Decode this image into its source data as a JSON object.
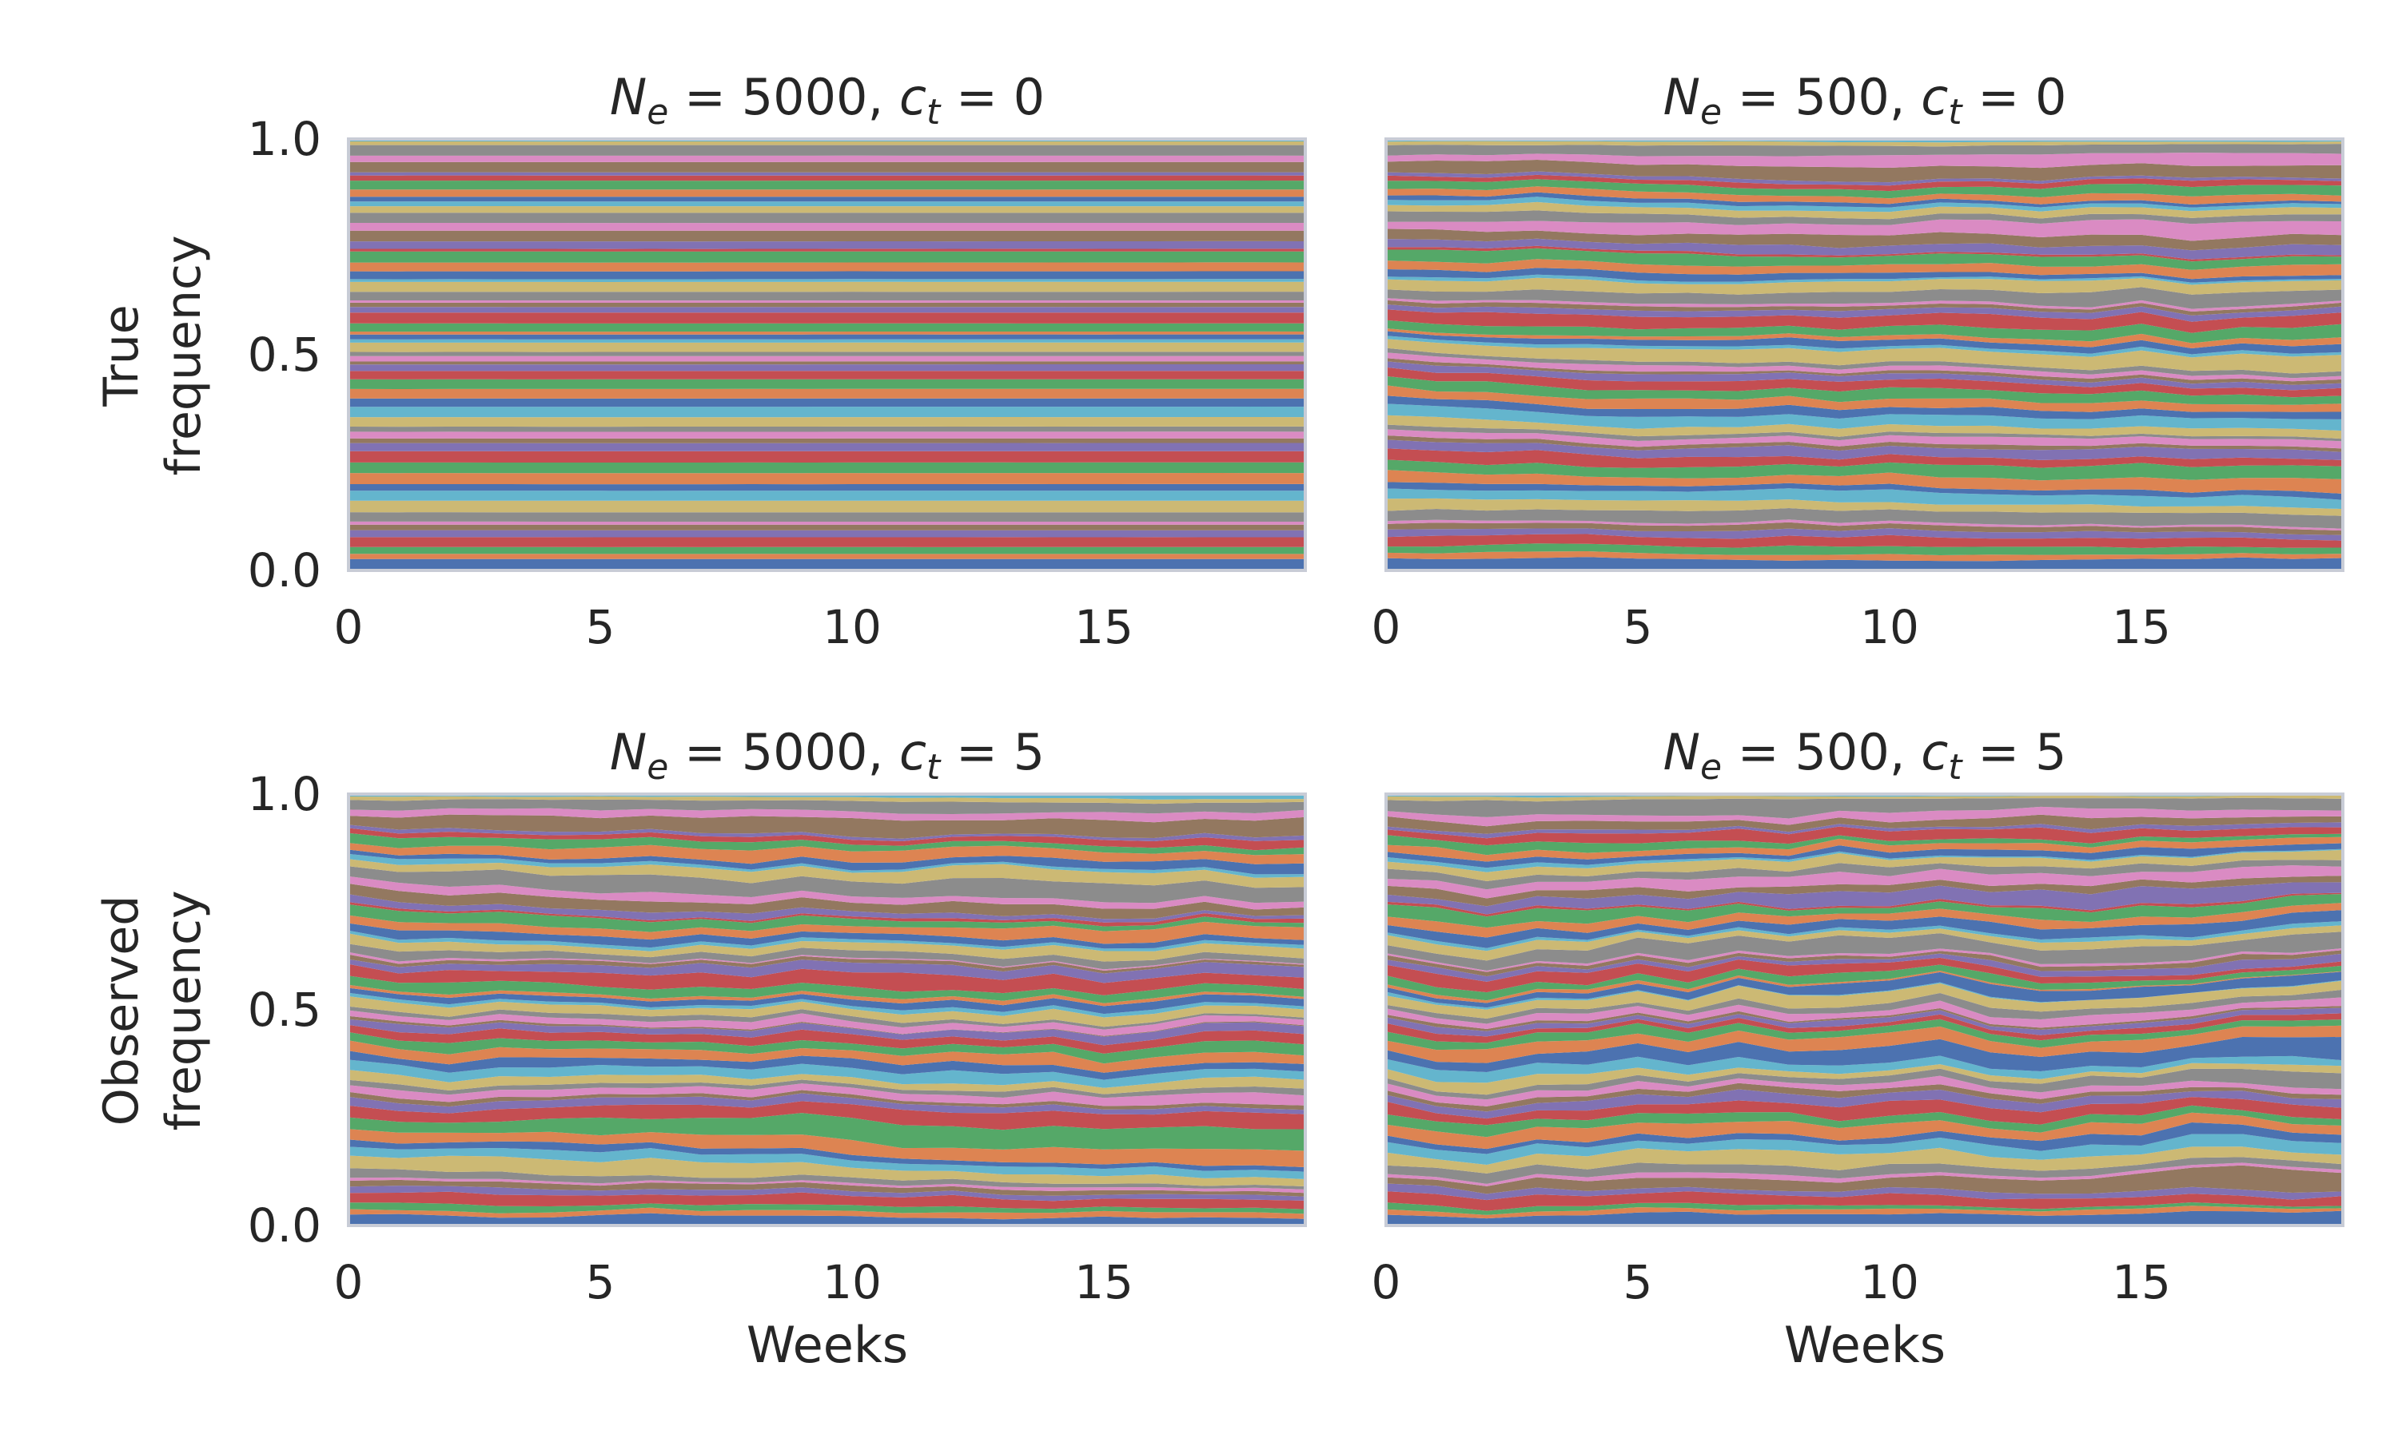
{
  "figure": {
    "row_labels": [
      {
        "line1": "True",
        "line2": "frequency"
      },
      {
        "line1": "Observed",
        "line2": "frequency"
      }
    ],
    "xlabel": "Weeks"
  },
  "chart_data": [
    {
      "type": "area",
      "stacked": true,
      "title": {
        "Ne": "5000",
        "ct": "0"
      },
      "xlabel": "",
      "ylabel": "True frequency",
      "x": [
        0,
        1,
        2,
        3,
        4,
        5,
        6,
        7,
        8,
        9,
        10,
        11,
        12,
        13,
        14,
        15,
        16,
        17,
        18,
        19
      ],
      "xlim": [
        0,
        19
      ],
      "ylim": [
        0,
        1
      ],
      "xticks": [
        0,
        5,
        10,
        15
      ],
      "yticks": [
        "0.0",
        "0.5",
        "1.0"
      ],
      "grid": false,
      "legend": "none",
      "n_series": 60,
      "fluctuation": 0.004
    },
    {
      "type": "area",
      "stacked": true,
      "title": {
        "Ne": "500",
        "ct": "0"
      },
      "xlabel": "",
      "ylabel": "",
      "x": [
        0,
        1,
        2,
        3,
        4,
        5,
        6,
        7,
        8,
        9,
        10,
        11,
        12,
        13,
        14,
        15,
        16,
        17,
        18,
        19
      ],
      "xlim": [
        0,
        19
      ],
      "ylim": [
        0,
        1
      ],
      "xticks": [
        0,
        5,
        10,
        15
      ],
      "yticks": [],
      "grid": false,
      "legend": "none",
      "n_series": 60,
      "fluctuation": 0.35
    },
    {
      "type": "area",
      "stacked": true,
      "title": {
        "Ne": "5000",
        "ct": "5"
      },
      "xlabel": "Weeks",
      "ylabel": "Observed frequency",
      "x": [
        0,
        1,
        2,
        3,
        4,
        5,
        6,
        7,
        8,
        9,
        10,
        11,
        12,
        13,
        14,
        15,
        16,
        17,
        18,
        19
      ],
      "xlim": [
        0,
        19
      ],
      "ylim": [
        0,
        1
      ],
      "xticks": [
        0,
        5,
        10,
        15
      ],
      "yticks": [
        "0.0",
        "0.5",
        "1.0"
      ],
      "grid": false,
      "legend": "none",
      "n_series": 60,
      "fluctuation": 0.45
    },
    {
      "type": "area",
      "stacked": true,
      "title": {
        "Ne": "500",
        "ct": "5"
      },
      "xlabel": "Weeks",
      "ylabel": "",
      "x": [
        0,
        1,
        2,
        3,
        4,
        5,
        6,
        7,
        8,
        9,
        10,
        11,
        12,
        13,
        14,
        15,
        16,
        17,
        18,
        19
      ],
      "xlim": [
        0,
        19
      ],
      "ylim": [
        0,
        1
      ],
      "xticks": [
        0,
        5,
        10,
        15
      ],
      "yticks": [],
      "grid": false,
      "legend": "none",
      "n_series": 60,
      "fluctuation": 0.6
    }
  ],
  "colors": {
    "palette": [
      "#4c72b0",
      "#dd8452",
      "#55a868",
      "#c44e52",
      "#8172b3",
      "#937860",
      "#da8bc3",
      "#8c8c8c",
      "#ccb974",
      "#64b5cd"
    ],
    "spine": "#c8ccd6",
    "text": "#262626",
    "background": "#ffffff"
  }
}
